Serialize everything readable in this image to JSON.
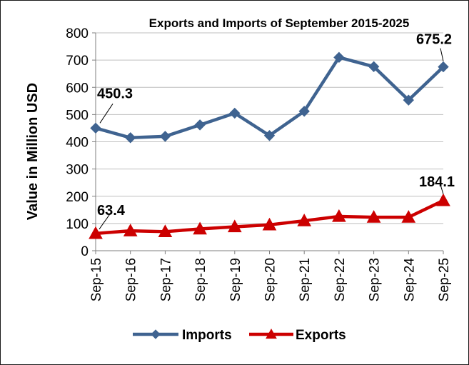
{
  "chart_data": {
    "type": "line",
    "title": "Exports and Imports of September 2015-2025",
    "ylabel": "Value in Million USD",
    "xlabel": "",
    "ylim": [
      0,
      800
    ],
    "yticks": [
      "0",
      "100",
      "200",
      "300",
      "400",
      "500",
      "600",
      "700",
      "800"
    ],
    "categories": [
      "Sep-15",
      "Sep-16",
      "Sep-17",
      "Sep-18",
      "Sep-19",
      "Sep-20",
      "Sep-21",
      "Sep-22",
      "Sep-23",
      "Sep-24",
      "Sep-25"
    ],
    "grid": "horizontal",
    "legend_position": "bottom",
    "series": [
      {
        "name": "Imports",
        "color": "#3f6390",
        "marker": "diamond",
        "values": [
          450.3,
          415,
          420,
          462,
          505,
          423,
          512,
          710,
          676,
          553,
          675.2
        ]
      },
      {
        "name": "Exports",
        "color": "#cc0000",
        "marker": "triangle",
        "values": [
          63.4,
          73,
          70,
          80,
          88,
          95,
          110,
          126,
          123,
          123,
          184.1
        ]
      }
    ],
    "annotations": [
      {
        "text": "450.3",
        "series": "Imports",
        "index": 0
      },
      {
        "text": "675.2",
        "series": "Imports",
        "index": 10
      },
      {
        "text": "63.4",
        "series": "Exports",
        "index": 0
      },
      {
        "text": "184.1",
        "series": "Exports",
        "index": 10
      }
    ]
  }
}
